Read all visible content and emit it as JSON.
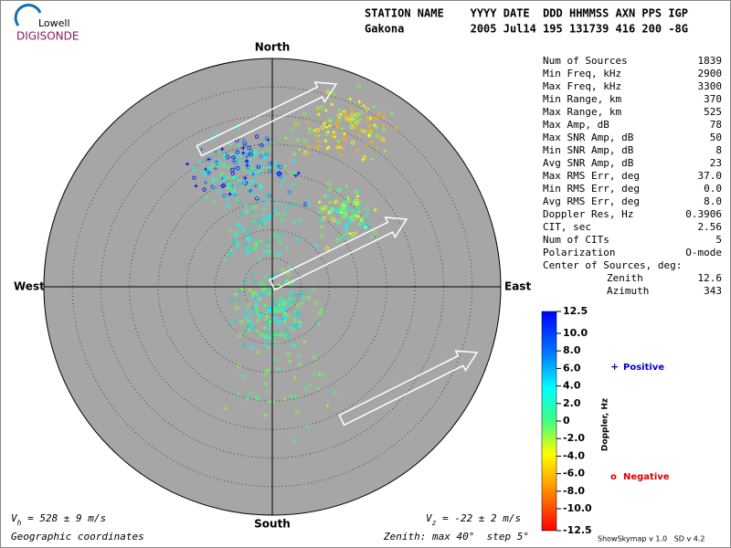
{
  "header": {
    "logo_top": "Lowell",
    "logo_bottom": "DIGISONDE",
    "columns": "STATION NAME    YYYY DATE  DDD HHMMSS AXN PPS IGP",
    "values": "Gakona          2005 Jul14 195 131739 416 200 -8G"
  },
  "compass": {
    "north": "North",
    "south": "South",
    "east": "East",
    "west": "West"
  },
  "stats": {
    "rows": [
      [
        "Num of Sources",
        "1839"
      ],
      [
        "Min Freq, kHz",
        "2900"
      ],
      [
        "Max Freq, kHz",
        "3300"
      ],
      [
        "Min Range, km",
        "370"
      ],
      [
        "Max Range, km",
        "525"
      ],
      [
        "Max Amp, dB",
        "78"
      ],
      [
        "Max SNR Amp, dB",
        "50"
      ],
      [
        "Min SNR Amp, dB",
        "8"
      ],
      [
        "Avg SNR Amp, dB",
        "23"
      ],
      [
        "Max RMS Err, deg",
        "37.0"
      ],
      [
        "Min RMS Err, deg",
        "0.0"
      ],
      [
        "Avg RMS Err, deg",
        "8.0"
      ],
      [
        "Doppler Res, Hz",
        "0.3906"
      ],
      [
        "CIT, sec",
        "2.56"
      ],
      [
        "Num of CITs",
        "5"
      ],
      [
        "Polarization",
        "O-mode"
      ]
    ],
    "center_title": "Center of Sources, deg:",
    "center_rows": [
      [
        "Zenith",
        "12.6"
      ],
      [
        "Azimuth",
        "343"
      ]
    ]
  },
  "colorbar": {
    "label": "Doppler, Hz",
    "ylim": [
      -12.5,
      12.5
    ],
    "ticks": [
      12.5,
      {
        "value": 10,
        "label": "10.0"
      },
      {
        "value": 8,
        "label": "8.0"
      },
      {
        "value": 6,
        "label": "6.0"
      },
      {
        "value": 4,
        "label": "4.0"
      },
      {
        "value": 2,
        "label": "2.0"
      },
      0,
      {
        "value": -2,
        "label": "-2.0"
      },
      {
        "value": -4,
        "label": "-4.0"
      },
      {
        "value": -6,
        "label": "-6.0"
      },
      {
        "value": -8,
        "label": "-8.0"
      },
      {
        "value": -10,
        "label": "-10.0"
      },
      -12.5
    ]
  },
  "legend": {
    "positive_symbol": "+",
    "positive": "Positive",
    "negative_symbol": "o",
    "negative": "Negative"
  },
  "footer": {
    "vh_symbol": "V",
    "vh_sub": "h",
    "vh_text": " = 528 ± 9 m/s",
    "vz_symbol": "V",
    "vz_sub": "z",
    "vz_text": " = -22 ± 2 m/s",
    "coords": "Geographic coordinates",
    "zenith": "Zenith: max 40°  step 5°",
    "software": "ShowSkymap v 1.0   SD v 4.2"
  }
}
